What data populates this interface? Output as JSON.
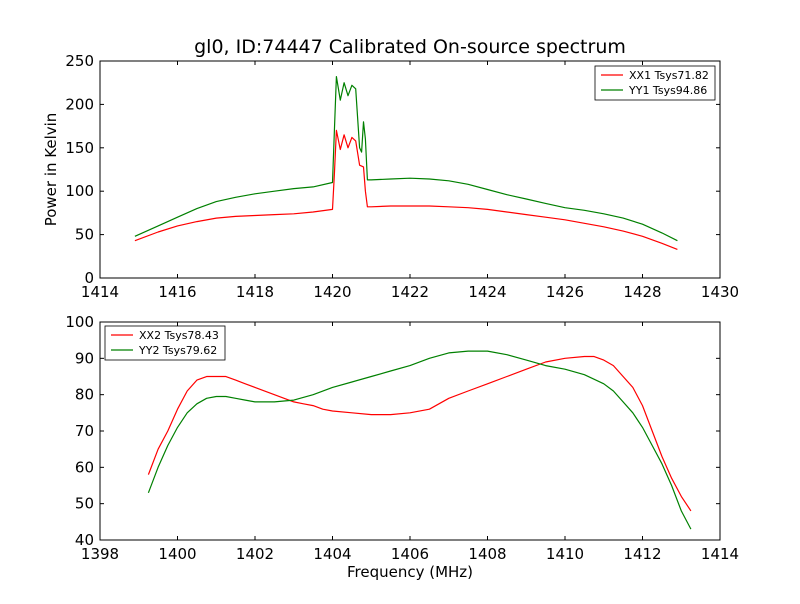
{
  "figure": {
    "title": "gl0, ID:74447 Calibrated On-source spectrum"
  },
  "chart_data": [
    {
      "type": "line",
      "title": "gl0, ID:74447 Calibrated On-source spectrum",
      "xlabel": "",
      "ylabel": "Power in Kelvin",
      "xlim": [
        1414,
        1430
      ],
      "ylim": [
        0,
        250
      ],
      "xticks": [
        1414,
        1416,
        1418,
        1420,
        1422,
        1424,
        1426,
        1428,
        1430
      ],
      "yticks": [
        0,
        50,
        100,
        150,
        200,
        250
      ],
      "grid": false,
      "legend_position": "top-right",
      "series": [
        {
          "name": "XX1 Tsys71.82",
          "color": "#ff0000",
          "x": [
            1414.9,
            1415.5,
            1416.0,
            1416.5,
            1417.0,
            1417.5,
            1418.0,
            1418.5,
            1419.0,
            1419.5,
            1420.0,
            1420.05,
            1420.1,
            1420.2,
            1420.3,
            1420.4,
            1420.5,
            1420.6,
            1420.7,
            1420.8,
            1420.85,
            1420.9,
            1421.0,
            1421.5,
            1422.0,
            1422.5,
            1423.0,
            1423.5,
            1424.0,
            1424.5,
            1425.0,
            1425.5,
            1426.0,
            1426.5,
            1427.0,
            1427.5,
            1428.0,
            1428.5,
            1428.9
          ],
          "values": [
            43,
            53,
            60,
            65,
            69,
            71,
            72,
            73,
            74,
            76,
            79,
            120,
            170,
            148,
            165,
            150,
            162,
            158,
            130,
            128,
            100,
            82,
            82,
            83,
            83,
            83,
            82,
            81,
            79,
            76,
            73,
            70,
            67,
            63,
            59,
            54,
            48,
            40,
            33
          ]
        },
        {
          "name": "YY1 Tsys94.86",
          "color": "#008000",
          "x": [
            1414.9,
            1415.5,
            1416.0,
            1416.5,
            1417.0,
            1417.5,
            1418.0,
            1418.5,
            1419.0,
            1419.5,
            1420.0,
            1420.05,
            1420.1,
            1420.2,
            1420.3,
            1420.4,
            1420.5,
            1420.6,
            1420.7,
            1420.75,
            1420.8,
            1420.85,
            1420.9,
            1421.0,
            1421.5,
            1422.0,
            1422.5,
            1423.0,
            1423.5,
            1424.0,
            1424.5,
            1425.0,
            1425.5,
            1426.0,
            1426.5,
            1427.0,
            1427.5,
            1428.0,
            1428.5,
            1428.9
          ],
          "values": [
            48,
            60,
            70,
            80,
            88,
            93,
            97,
            100,
            103,
            105,
            110,
            170,
            232,
            205,
            225,
            210,
            222,
            218,
            150,
            145,
            180,
            160,
            113,
            113,
            114,
            115,
            114,
            112,
            108,
            102,
            96,
            91,
            86,
            81,
            78,
            74,
            69,
            62,
            52,
            43
          ]
        }
      ]
    },
    {
      "type": "line",
      "title": "",
      "xlabel": "Frequency (MHz)",
      "ylabel": "",
      "xlim": [
        1398,
        1414
      ],
      "ylim": [
        40,
        100
      ],
      "xticks": [
        1398,
        1400,
        1402,
        1404,
        1406,
        1408,
        1410,
        1412,
        1414
      ],
      "yticks": [
        40,
        50,
        60,
        70,
        80,
        90,
        100
      ],
      "grid": false,
      "legend_position": "top-left",
      "series": [
        {
          "name": "XX2 Tsys78.43",
          "color": "#ff0000",
          "x": [
            1399.25,
            1399.5,
            1399.75,
            1400.0,
            1400.25,
            1400.5,
            1400.75,
            1401.0,
            1401.25,
            1401.5,
            1401.75,
            1402.0,
            1402.25,
            1402.5,
            1402.75,
            1403.0,
            1403.25,
            1403.5,
            1403.75,
            1404.0,
            1404.5,
            1405.0,
            1405.5,
            1406.0,
            1406.5,
            1407.0,
            1407.5,
            1408.0,
            1408.5,
            1409.0,
            1409.5,
            1410.0,
            1410.5,
            1410.75,
            1411.0,
            1411.25,
            1411.5,
            1411.75,
            1412.0,
            1412.25,
            1412.5,
            1412.75,
            1413.0,
            1413.25
          ],
          "values": [
            58,
            65,
            70,
            76,
            81,
            84,
            85,
            85,
            85,
            84,
            83,
            82,
            81,
            80,
            79,
            78,
            77.5,
            77,
            76,
            75.5,
            75,
            74.5,
            74.5,
            75,
            76,
            79,
            81,
            83,
            85,
            87,
            89,
            90,
            90.5,
            90.5,
            89.5,
            88,
            85,
            82,
            77,
            70,
            63,
            57,
            52,
            48
          ]
        },
        {
          "name": "YY2 Tsys79.62",
          "color": "#008000",
          "x": [
            1399.25,
            1399.5,
            1399.75,
            1400.0,
            1400.25,
            1400.5,
            1400.75,
            1401.0,
            1401.25,
            1401.5,
            1401.75,
            1402.0,
            1402.5,
            1403.0,
            1403.5,
            1404.0,
            1404.5,
            1405.0,
            1405.5,
            1406.0,
            1406.5,
            1407.0,
            1407.5,
            1408.0,
            1408.5,
            1409.0,
            1409.5,
            1410.0,
            1410.5,
            1411.0,
            1411.25,
            1411.5,
            1411.75,
            1412.0,
            1412.25,
            1412.5,
            1412.75,
            1413.0,
            1413.25
          ],
          "values": [
            53,
            60,
            66,
            71,
            75,
            77.5,
            79,
            79.5,
            79.5,
            79,
            78.5,
            78,
            78,
            78.5,
            80,
            82,
            83.5,
            85,
            86.5,
            88,
            90,
            91.5,
            92,
            92,
            91,
            89.5,
            88,
            87,
            85.5,
            83,
            81,
            78,
            75,
            71,
            66,
            61,
            55,
            48,
            43
          ]
        }
      ]
    }
  ]
}
